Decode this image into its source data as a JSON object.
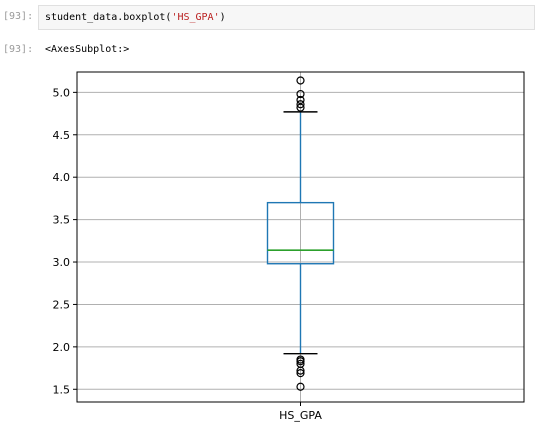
{
  "cell": {
    "in_prompt": "[93]:",
    "code_prefix": "student_data.boxplot(",
    "code_string": "'HS_GPA'",
    "code_suffix": ")",
    "out_prompt": "[93]:",
    "output_text": "<AxesSubplot:>"
  },
  "chart_data": {
    "type": "boxplot",
    "categories": [
      "HS_GPA"
    ],
    "ylim": [
      1.35,
      5.24
    ],
    "yticks": [
      1.5,
      2.0,
      2.5,
      3.0,
      3.5,
      4.0,
      4.5,
      5.0
    ],
    "ytick_labels": [
      "1.5",
      "2.0",
      "2.5",
      "3.0",
      "3.5",
      "4.0",
      "4.5",
      "5.0"
    ],
    "grid": true,
    "box": {
      "whisker_low": 1.92,
      "q1": 2.98,
      "median": 3.14,
      "q3": 3.7,
      "whisker_high": 4.77,
      "outliers": [
        5.14,
        4.98,
        4.91,
        4.86,
        4.82,
        1.85,
        1.83,
        1.8,
        1.72,
        1.69,
        1.53
      ]
    },
    "colors": {
      "box": "#1f77b4",
      "median": "#2ca02c",
      "grid": "#b0b0b0",
      "outlier": "#000000"
    }
  }
}
